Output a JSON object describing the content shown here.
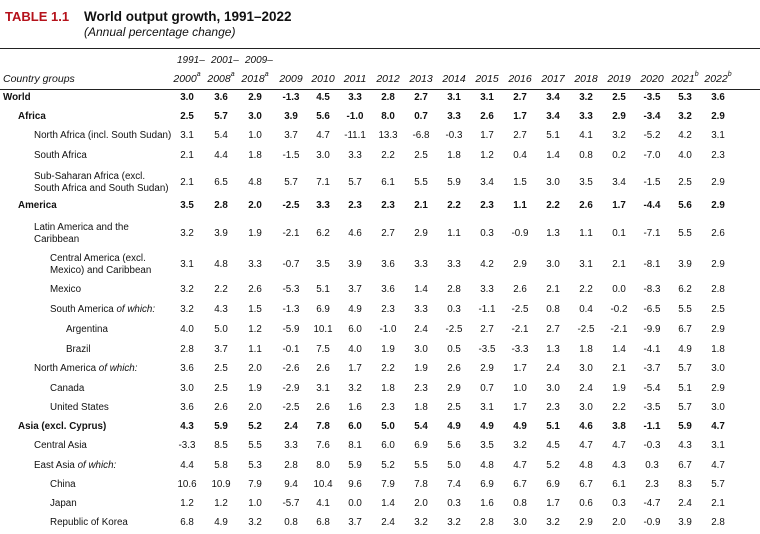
{
  "header": {
    "table_label": "TABLE 1.1",
    "title": "World output growth, 1991–2022",
    "subtitle": "(Annual percentage change)",
    "col_group_label": "Country groups",
    "top_labels": [
      "1991–",
      "2001–",
      "2009–"
    ],
    "columns": [
      "2000",
      "2008",
      "2018",
      "2009",
      "2010",
      "2011",
      "2012",
      "2013",
      "2014",
      "2015",
      "2016",
      "2017",
      "2018",
      "2019",
      "2020",
      "2021",
      "2022"
    ],
    "column_sups": [
      "a",
      "a",
      "a",
      "",
      "",
      "",
      "",
      "",
      "",
      "",
      "",
      "",
      "",
      "",
      "",
      "b",
      "b"
    ]
  },
  "rows": [
    {
      "label": [
        "World"
      ],
      "indent": 0,
      "bold": true,
      "values": [
        "3.0",
        "3.6",
        "2.9",
        "-1.3",
        "4.5",
        "3.3",
        "2.8",
        "2.7",
        "3.1",
        "3.1",
        "2.7",
        "3.4",
        "3.2",
        "2.5",
        "-3.5",
        "5.3",
        "3.6"
      ]
    },
    {
      "label": [
        "Africa"
      ],
      "indent": 1,
      "bold": true,
      "values": [
        "2.5",
        "5.7",
        "3.0",
        "3.9",
        "5.6",
        "-1.0",
        "8.0",
        "0.7",
        "3.3",
        "2.6",
        "1.7",
        "3.4",
        "3.3",
        "2.9",
        "-3.4",
        "3.2",
        "2.9"
      ]
    },
    {
      "label": [
        "North Africa (incl. South Sudan)"
      ],
      "indent": 2,
      "bold": false,
      "values": [
        "3.1",
        "5.4",
        "1.0",
        "3.7",
        "4.7",
        "-11.1",
        "13.3",
        "-6.8",
        "-0.3",
        "1.7",
        "2.7",
        "5.1",
        "4.1",
        "3.2",
        "-5.2",
        "4.2",
        "3.1"
      ]
    },
    {
      "label": [
        "South Africa"
      ],
      "indent": 2,
      "bold": false,
      "values": [
        "2.1",
        "4.4",
        "1.8",
        "-1.5",
        "3.0",
        "3.3",
        "2.2",
        "2.5",
        "1.8",
        "1.2",
        "0.4",
        "1.4",
        "0.8",
        "0.2",
        "-7.0",
        "4.0",
        "2.3"
      ]
    },
    {
      "label": [
        "Sub-Saharan Africa (excl.",
        "South Africa and South Sudan)"
      ],
      "indent": 2,
      "bold": false,
      "values": [
        "2.1",
        "6.5",
        "4.8",
        "5.7",
        "7.1",
        "5.7",
        "6.1",
        "5.5",
        "5.9",
        "3.4",
        "1.5",
        "3.0",
        "3.5",
        "3.4",
        "-1.5",
        "2.5",
        "2.9"
      ]
    },
    {
      "label": [
        "America"
      ],
      "indent": 1,
      "bold": true,
      "values": [
        "3.5",
        "2.8",
        "2.0",
        "-2.5",
        "3.3",
        "2.3",
        "2.3",
        "2.1",
        "2.2",
        "2.3",
        "1.1",
        "2.2",
        "2.6",
        "1.7",
        "-4.4",
        "5.6",
        "2.9"
      ]
    },
    {
      "label": [
        "Latin America and the",
        "Caribbean"
      ],
      "indent": 2,
      "bold": false,
      "values": [
        "3.2",
        "3.9",
        "1.9",
        "-2.1",
        "6.2",
        "4.6",
        "2.7",
        "2.9",
        "1.1",
        "0.3",
        "-0.9",
        "1.3",
        "1.1",
        "0.1",
        "-7.1",
        "5.5",
        "2.6"
      ]
    },
    {
      "label": [
        "Central America (excl.",
        "Mexico) and Caribbean"
      ],
      "indent": 3,
      "bold": false,
      "values": [
        "3.1",
        "4.8",
        "3.3",
        "-0.7",
        "3.5",
        "3.9",
        "3.6",
        "3.3",
        "3.3",
        "4.2",
        "2.9",
        "3.0",
        "3.1",
        "2.1",
        "-8.1",
        "3.9",
        "2.9"
      ]
    },
    {
      "label": [
        "Mexico"
      ],
      "indent": 3,
      "bold": false,
      "values": [
        "3.2",
        "2.2",
        "2.6",
        "-5.3",
        "5.1",
        "3.7",
        "3.6",
        "1.4",
        "2.8",
        "3.3",
        "2.6",
        "2.1",
        "2.2",
        "0.0",
        "-8.3",
        "6.2",
        "2.8"
      ]
    },
    {
      "label": [
        "South America ",
        "of which:"
      ],
      "indent": 3,
      "bold": false,
      "italic_tail": true,
      "values": [
        "3.2",
        "4.3",
        "1.5",
        "-1.3",
        "6.9",
        "4.9",
        "2.3",
        "3.3",
        "0.3",
        "-1.1",
        "-2.5",
        "0.8",
        "0.4",
        "-0.2",
        "-6.5",
        "5.5",
        "2.5"
      ]
    },
    {
      "label": [
        "Argentina"
      ],
      "indent": 4,
      "bold": false,
      "values": [
        "4.0",
        "5.0",
        "1.2",
        "-5.9",
        "10.1",
        "6.0",
        "-1.0",
        "2.4",
        "-2.5",
        "2.7",
        "-2.1",
        "2.7",
        "-2.5",
        "-2.1",
        "-9.9",
        "6.7",
        "2.9"
      ]
    },
    {
      "label": [
        "Brazil"
      ],
      "indent": 4,
      "bold": false,
      "values": [
        "2.8",
        "3.7",
        "1.1",
        "-0.1",
        "7.5",
        "4.0",
        "1.9",
        "3.0",
        "0.5",
        "-3.5",
        "-3.3",
        "1.3",
        "1.8",
        "1.4",
        "-4.1",
        "4.9",
        "1.8"
      ]
    },
    {
      "label": [
        "North America ",
        "of which:"
      ],
      "indent": 2,
      "bold": false,
      "italic_tail": true,
      "values": [
        "3.6",
        "2.5",
        "2.0",
        "-2.6",
        "2.6",
        "1.7",
        "2.2",
        "1.9",
        "2.6",
        "2.9",
        "1.7",
        "2.4",
        "3.0",
        "2.1",
        "-3.7",
        "5.7",
        "3.0"
      ]
    },
    {
      "label": [
        "Canada"
      ],
      "indent": 3,
      "bold": false,
      "values": [
        "3.0",
        "2.5",
        "1.9",
        "-2.9",
        "3.1",
        "3.2",
        "1.8",
        "2.3",
        "2.9",
        "0.7",
        "1.0",
        "3.0",
        "2.4",
        "1.9",
        "-5.4",
        "5.1",
        "2.9"
      ]
    },
    {
      "label": [
        "United States"
      ],
      "indent": 3,
      "bold": false,
      "values": [
        "3.6",
        "2.6",
        "2.0",
        "-2.5",
        "2.6",
        "1.6",
        "2.3",
        "1.8",
        "2.5",
        "3.1",
        "1.7",
        "2.3",
        "3.0",
        "2.2",
        "-3.5",
        "5.7",
        "3.0"
      ]
    },
    {
      "label": [
        "Asia (excl. Cyprus)"
      ],
      "indent": 1,
      "bold": true,
      "values": [
        "4.3",
        "5.9",
        "5.2",
        "2.4",
        "7.8",
        "6.0",
        "5.0",
        "5.4",
        "4.9",
        "4.9",
        "4.9",
        "5.1",
        "4.6",
        "3.8",
        "-1.1",
        "5.9",
        "4.7"
      ]
    },
    {
      "label": [
        "Central Asia"
      ],
      "indent": 2,
      "bold": false,
      "values": [
        "-3.3",
        "8.5",
        "5.5",
        "3.3",
        "7.6",
        "8.1",
        "6.0",
        "6.9",
        "5.6",
        "3.5",
        "3.2",
        "4.5",
        "4.7",
        "4.7",
        "-0.3",
        "4.3",
        "3.1"
      ]
    },
    {
      "label": [
        "East Asia ",
        "of which:"
      ],
      "indent": 2,
      "bold": false,
      "italic_tail": true,
      "values": [
        "4.4",
        "5.8",
        "5.3",
        "2.8",
        "8.0",
        "5.9",
        "5.2",
        "5.5",
        "5.0",
        "4.8",
        "4.7",
        "5.2",
        "4.8",
        "4.3",
        "0.3",
        "6.7",
        "4.7"
      ]
    },
    {
      "label": [
        "China"
      ],
      "indent": 3,
      "bold": false,
      "values": [
        "10.6",
        "10.9",
        "7.9",
        "9.4",
        "10.4",
        "9.6",
        "7.9",
        "7.8",
        "7.4",
        "6.9",
        "6.7",
        "6.9",
        "6.7",
        "6.1",
        "2.3",
        "8.3",
        "5.7"
      ]
    },
    {
      "label": [
        "Japan"
      ],
      "indent": 3,
      "bold": false,
      "values": [
        "1.2",
        "1.2",
        "1.0",
        "-5.7",
        "4.1",
        "0.0",
        "1.4",
        "2.0",
        "0.3",
        "1.6",
        "0.8",
        "1.7",
        "0.6",
        "0.3",
        "-4.7",
        "2.4",
        "2.1"
      ]
    },
    {
      "label": [
        "Republic of Korea"
      ],
      "indent": 3,
      "bold": false,
      "values": [
        "6.8",
        "4.9",
        "3.2",
        "0.8",
        "6.8",
        "3.7",
        "2.4",
        "3.2",
        "3.2",
        "2.8",
        "3.0",
        "3.2",
        "2.9",
        "2.0",
        "-0.9",
        "3.9",
        "2.8"
      ]
    }
  ]
}
